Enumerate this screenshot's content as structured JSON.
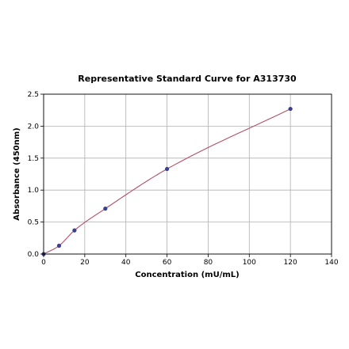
{
  "chart_data": {
    "type": "scatter",
    "title": "Representative Standard Curve for A313730",
    "xlabel": "Concentration (mU/mL)",
    "ylabel": "Absorbance (450nm)",
    "xlim": [
      0,
      140
    ],
    "ylim": [
      0,
      2.5
    ],
    "xticks": [
      0,
      20,
      40,
      60,
      80,
      100,
      120,
      140
    ],
    "yticks": [
      0.0,
      0.5,
      1.0,
      1.5,
      2.0,
      2.5
    ],
    "xtick_labels": [
      "0",
      "20",
      "40",
      "60",
      "80",
      "100",
      "120",
      "140"
    ],
    "ytick_labels": [
      "0.0",
      "0.5",
      "1.0",
      "1.5",
      "2.0",
      "2.5"
    ],
    "grid": true,
    "colors": {
      "curve": "#b5506a",
      "points": "#3b3f8c"
    },
    "series": [
      {
        "x": [
          0,
          7.5,
          15,
          30,
          60,
          120
        ],
        "y": [
          0.0,
          0.13,
          0.37,
          0.71,
          1.33,
          2.27
        ]
      }
    ]
  }
}
